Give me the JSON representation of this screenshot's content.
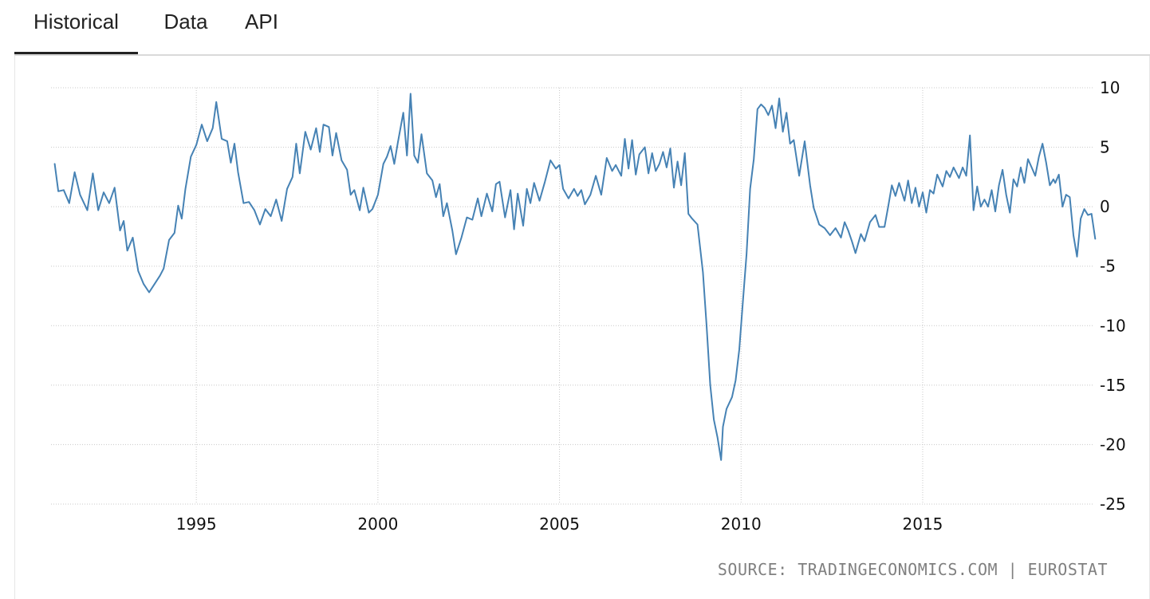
{
  "tabs": [
    {
      "label": "Historical",
      "active": true
    },
    {
      "label": "Data",
      "active": false
    },
    {
      "label": "API",
      "active": false
    }
  ],
  "source": "SOURCE: TRADINGECONOMICS.COM | EUROSTAT",
  "chart_data": {
    "type": "line",
    "title": "",
    "xlabel": "",
    "ylabel": "",
    "xlim": [
      1991.0,
      2019.7
    ],
    "ylim": [
      -25,
      10
    ],
    "y_ticks": [
      10,
      5,
      0,
      -5,
      -10,
      -15,
      -20,
      -25
    ],
    "x_ticks": [
      1995,
      2000,
      2005,
      2010,
      2015
    ],
    "grid": true,
    "y_axis_position": "right",
    "line_color": "#4682b4",
    "series": [
      {
        "name": "",
        "points": [
          [
            1991.1,
            3.6
          ],
          [
            1991.2,
            1.3
          ],
          [
            1991.35,
            1.4
          ],
          [
            1991.5,
            0.3
          ],
          [
            1991.65,
            2.9
          ],
          [
            1991.8,
            1.0
          ],
          [
            1992.0,
            -0.3
          ],
          [
            1992.15,
            2.8
          ],
          [
            1992.3,
            -0.3
          ],
          [
            1992.45,
            1.2
          ],
          [
            1992.6,
            0.3
          ],
          [
            1992.75,
            1.6
          ],
          [
            1992.9,
            -2.0
          ],
          [
            1993.0,
            -1.2
          ],
          [
            1993.1,
            -3.7
          ],
          [
            1993.25,
            -2.6
          ],
          [
            1993.4,
            -5.4
          ],
          [
            1993.55,
            -6.5
          ],
          [
            1993.7,
            -7.2
          ],
          [
            1993.85,
            -6.5
          ],
          [
            1994.0,
            -5.8
          ],
          [
            1994.1,
            -5.2
          ],
          [
            1994.25,
            -2.8
          ],
          [
            1994.4,
            -2.2
          ],
          [
            1994.5,
            0.1
          ],
          [
            1994.6,
            -1.0
          ],
          [
            1994.7,
            1.5
          ],
          [
            1994.85,
            4.2
          ],
          [
            1995.0,
            5.2
          ],
          [
            1995.15,
            6.9
          ],
          [
            1995.3,
            5.5
          ],
          [
            1995.45,
            6.6
          ],
          [
            1995.55,
            8.8
          ],
          [
            1995.7,
            5.7
          ],
          [
            1995.85,
            5.5
          ],
          [
            1995.95,
            3.7
          ],
          [
            1996.05,
            5.3
          ],
          [
            1996.15,
            2.9
          ],
          [
            1996.3,
            0.3
          ],
          [
            1996.45,
            0.4
          ],
          [
            1996.6,
            -0.3
          ],
          [
            1996.75,
            -1.5
          ],
          [
            1996.9,
            -0.2
          ],
          [
            1997.05,
            -0.8
          ],
          [
            1997.2,
            0.6
          ],
          [
            1997.35,
            -1.2
          ],
          [
            1997.5,
            1.5
          ],
          [
            1997.65,
            2.5
          ],
          [
            1997.75,
            5.3
          ],
          [
            1997.85,
            2.8
          ],
          [
            1998.0,
            6.3
          ],
          [
            1998.15,
            4.8
          ],
          [
            1998.3,
            6.6
          ],
          [
            1998.4,
            4.6
          ],
          [
            1998.5,
            6.9
          ],
          [
            1998.65,
            6.7
          ],
          [
            1998.75,
            4.3
          ],
          [
            1998.85,
            6.2
          ],
          [
            1999.0,
            3.9
          ],
          [
            1999.15,
            3.1
          ],
          [
            1999.25,
            1.0
          ],
          [
            1999.35,
            1.4
          ],
          [
            1999.5,
            -0.3
          ],
          [
            1999.6,
            1.6
          ],
          [
            1999.75,
            -0.5
          ],
          [
            1999.85,
            -0.2
          ],
          [
            2000.0,
            1.0
          ],
          [
            2000.15,
            3.6
          ],
          [
            2000.25,
            4.2
          ],
          [
            2000.35,
            5.1
          ],
          [
            2000.45,
            3.6
          ],
          [
            2000.55,
            5.4
          ],
          [
            2000.7,
            7.9
          ],
          [
            2000.8,
            4.3
          ],
          [
            2000.9,
            9.5
          ],
          [
            2001.0,
            4.3
          ],
          [
            2001.1,
            3.7
          ],
          [
            2001.2,
            6.1
          ],
          [
            2001.35,
            2.8
          ],
          [
            2001.5,
            2.2
          ],
          [
            2001.6,
            0.8
          ],
          [
            2001.7,
            1.9
          ],
          [
            2001.8,
            -0.8
          ],
          [
            2001.9,
            0.3
          ],
          [
            2002.05,
            -2.0
          ],
          [
            2002.15,
            -4.0
          ],
          [
            2002.3,
            -2.6
          ],
          [
            2002.45,
            -0.9
          ],
          [
            2002.6,
            -1.1
          ],
          [
            2002.75,
            0.7
          ],
          [
            2002.85,
            -0.8
          ],
          [
            2003.0,
            1.1
          ],
          [
            2003.15,
            -0.4
          ],
          [
            2003.25,
            1.9
          ],
          [
            2003.35,
            2.1
          ],
          [
            2003.5,
            -0.9
          ],
          [
            2003.65,
            1.4
          ],
          [
            2003.75,
            -1.9
          ],
          [
            2003.85,
            1.1
          ],
          [
            2004.0,
            -1.6
          ],
          [
            2004.1,
            1.5
          ],
          [
            2004.2,
            0.3
          ],
          [
            2004.3,
            2.0
          ],
          [
            2004.45,
            0.5
          ],
          [
            2004.6,
            2.1
          ],
          [
            2004.75,
            3.9
          ],
          [
            2004.9,
            3.2
          ],
          [
            2005.0,
            3.5
          ],
          [
            2005.1,
            1.5
          ],
          [
            2005.25,
            0.7
          ],
          [
            2005.4,
            1.5
          ],
          [
            2005.5,
            0.9
          ],
          [
            2005.6,
            1.4
          ],
          [
            2005.7,
            0.2
          ],
          [
            2005.85,
            1.0
          ],
          [
            2006.0,
            2.6
          ],
          [
            2006.15,
            1.0
          ],
          [
            2006.3,
            4.1
          ],
          [
            2006.45,
            3.0
          ],
          [
            2006.55,
            3.5
          ],
          [
            2006.7,
            2.6
          ],
          [
            2006.8,
            5.7
          ],
          [
            2006.9,
            3.2
          ],
          [
            2007.0,
            5.6
          ],
          [
            2007.1,
            2.7
          ],
          [
            2007.2,
            4.4
          ],
          [
            2007.35,
            5.0
          ],
          [
            2007.45,
            2.8
          ],
          [
            2007.55,
            4.5
          ],
          [
            2007.65,
            3.0
          ],
          [
            2007.75,
            3.6
          ],
          [
            2007.85,
            4.6
          ],
          [
            2007.95,
            3.3
          ],
          [
            2008.05,
            4.9
          ],
          [
            2008.15,
            1.6
          ],
          [
            2008.25,
            3.8
          ],
          [
            2008.35,
            1.8
          ],
          [
            2008.45,
            4.5
          ],
          [
            2008.55,
            -0.6
          ],
          [
            2008.65,
            -1.0
          ],
          [
            2008.8,
            -1.5
          ],
          [
            2008.95,
            -5.5
          ],
          [
            2009.05,
            -10.0
          ],
          [
            2009.15,
            -15.0
          ],
          [
            2009.25,
            -17.9
          ],
          [
            2009.35,
            -19.4
          ],
          [
            2009.45,
            -21.3
          ],
          [
            2009.5,
            -18.5
          ],
          [
            2009.6,
            -17.0
          ],
          [
            2009.75,
            -16.0
          ],
          [
            2009.85,
            -14.6
          ],
          [
            2009.95,
            -12.0
          ],
          [
            2010.05,
            -8.0
          ],
          [
            2010.15,
            -4.0
          ],
          [
            2010.25,
            1.5
          ],
          [
            2010.35,
            4.0
          ],
          [
            2010.45,
            8.2
          ],
          [
            2010.55,
            8.6
          ],
          [
            2010.65,
            8.3
          ],
          [
            2010.75,
            7.7
          ],
          [
            2010.85,
            8.5
          ],
          [
            2010.95,
            6.6
          ],
          [
            2011.05,
            9.1
          ],
          [
            2011.15,
            6.3
          ],
          [
            2011.25,
            7.9
          ],
          [
            2011.35,
            5.3
          ],
          [
            2011.45,
            5.6
          ],
          [
            2011.6,
            2.6
          ],
          [
            2011.75,
            5.5
          ],
          [
            2011.9,
            1.8
          ],
          [
            2012.0,
            -0.1
          ],
          [
            2012.15,
            -1.5
          ],
          [
            2012.3,
            -1.8
          ],
          [
            2012.45,
            -2.4
          ],
          [
            2012.6,
            -1.8
          ],
          [
            2012.75,
            -2.6
          ],
          [
            2012.85,
            -1.3
          ],
          [
            2012.95,
            -2.0
          ],
          [
            2013.05,
            -2.9
          ],
          [
            2013.15,
            -3.9
          ],
          [
            2013.3,
            -2.3
          ],
          [
            2013.4,
            -2.9
          ],
          [
            2013.55,
            -1.3
          ],
          [
            2013.7,
            -0.7
          ],
          [
            2013.8,
            -1.7
          ],
          [
            2013.95,
            -1.7
          ],
          [
            2014.05,
            0.0
          ],
          [
            2014.15,
            1.8
          ],
          [
            2014.25,
            0.9
          ],
          [
            2014.35,
            2.0
          ],
          [
            2014.5,
            0.5
          ],
          [
            2014.6,
            2.2
          ],
          [
            2014.7,
            0.3
          ],
          [
            2014.8,
            1.6
          ],
          [
            2014.9,
            0.0
          ],
          [
            2015.0,
            1.2
          ],
          [
            2015.1,
            -0.5
          ],
          [
            2015.2,
            1.4
          ],
          [
            2015.3,
            1.1
          ],
          [
            2015.4,
            2.7
          ],
          [
            2015.55,
            1.7
          ],
          [
            2015.65,
            3.0
          ],
          [
            2015.75,
            2.5
          ],
          [
            2015.85,
            3.3
          ],
          [
            2016.0,
            2.4
          ],
          [
            2016.1,
            3.3
          ],
          [
            2016.2,
            2.6
          ],
          [
            2016.3,
            6.0
          ],
          [
            2016.4,
            -0.3
          ],
          [
            2016.5,
            1.7
          ],
          [
            2016.6,
            0.0
          ],
          [
            2016.7,
            0.6
          ],
          [
            2016.8,
            0.0
          ],
          [
            2016.9,
            1.4
          ],
          [
            2017.0,
            -0.4
          ],
          [
            2017.1,
            1.8
          ],
          [
            2017.2,
            3.1
          ],
          [
            2017.3,
            1.0
          ],
          [
            2017.4,
            -0.5
          ],
          [
            2017.5,
            2.3
          ],
          [
            2017.6,
            1.7
          ],
          [
            2017.7,
            3.3
          ],
          [
            2017.8,
            2.0
          ],
          [
            2017.9,
            4.0
          ],
          [
            2018.0,
            3.3
          ],
          [
            2018.1,
            2.6
          ],
          [
            2018.2,
            4.2
          ],
          [
            2018.3,
            5.3
          ],
          [
            2018.4,
            3.7
          ],
          [
            2018.5,
            1.8
          ],
          [
            2018.6,
            2.3
          ],
          [
            2018.65,
            2.0
          ],
          [
            2018.75,
            2.7
          ],
          [
            2018.85,
            0.0
          ],
          [
            2018.95,
            1.0
          ],
          [
            2019.05,
            0.8
          ],
          [
            2019.15,
            -2.4
          ],
          [
            2019.25,
            -4.2
          ],
          [
            2019.35,
            -1.0
          ],
          [
            2019.45,
            -0.2
          ],
          [
            2019.55,
            -0.7
          ],
          [
            2019.65,
            -0.6
          ],
          [
            2019.75,
            -2.7
          ]
        ]
      }
    ]
  }
}
